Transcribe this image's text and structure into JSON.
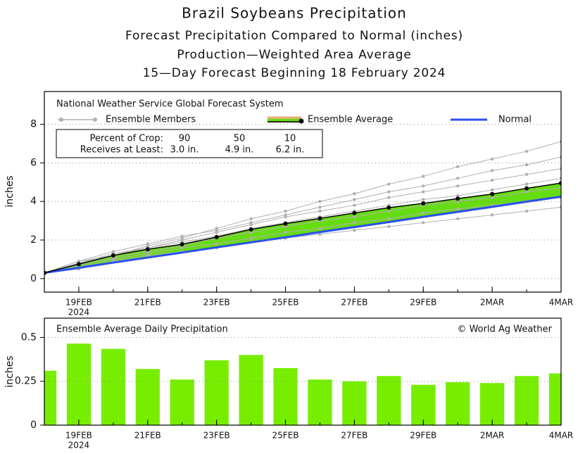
{
  "chart_data": [
    {
      "type": "line",
      "title": "Brazil Soybeans Precipitation",
      "subtitle": [
        "Forecast Precipitation Compared to Normal (inches)",
        "Production—Weighted Area Average",
        "15—Day Forecast Beginning 18 February 2024"
      ],
      "source": "National Weather Service Global Forecast System",
      "ylabel": "inches",
      "x": [
        "2024-02-18",
        "2024-02-19",
        "2024-02-20",
        "2024-02-21",
        "2024-02-22",
        "2024-02-23",
        "2024-02-24",
        "2024-02-25",
        "2024-02-26",
        "2024-02-27",
        "2024-02-28",
        "2024-02-29",
        "2024-03-01",
        "2024-03-02",
        "2024-03-03",
        "2024-03-04"
      ],
      "xlim": [
        "2024-02-18",
        "2024-03-04"
      ],
      "xticks": [
        {
          "value": "2024-02-19",
          "label": "19FEB"
        },
        {
          "value": "2024-02-21",
          "label": "21FEB"
        },
        {
          "value": "2024-02-23",
          "label": "23FEB"
        },
        {
          "value": "2024-02-25",
          "label": "25FEB"
        },
        {
          "value": "2024-02-27",
          "label": "27FEB"
        },
        {
          "value": "2024-02-29",
          "label": "29FEB"
        },
        {
          "value": "2024-03-02",
          "label": "2MAR"
        },
        {
          "value": "2024-03-04",
          "label": "4MAR"
        }
      ],
      "x_year_label": "2024",
      "ylim": [
        -0.7,
        9.7
      ],
      "yticks": [
        0,
        2,
        4,
        6,
        8
      ],
      "grid": true,
      "fill_color": "#66dd11",
      "legend_outline_color": "#e0b070",
      "series": [
        {
          "name": "Ensemble Members",
          "color": "#b0b0b0",
          "members": [
            [
              0.3,
              0.8,
              1.2,
              1.7,
              2.1,
              2.6,
              3.1,
              3.5,
              4.0,
              4.4,
              4.9,
              5.3,
              5.8,
              6.2,
              6.6,
              7.1
            ],
            [
              0.3,
              0.9,
              1.4,
              1.8,
              2.2,
              2.5,
              2.9,
              3.3,
              3.7,
              4.1,
              4.5,
              4.8,
              5.2,
              5.6,
              5.9,
              6.3
            ],
            [
              0.3,
              0.8,
              1.3,
              1.6,
              2.0,
              2.4,
              2.8,
              3.2,
              3.5,
              3.8,
              4.2,
              4.5,
              4.8,
              5.1,
              5.4,
              5.7
            ],
            [
              0.3,
              0.9,
              1.2,
              1.6,
              1.9,
              2.2,
              2.6,
              2.9,
              3.2,
              3.5,
              3.8,
              4.1,
              4.3,
              4.6,
              4.9,
              5.2
            ],
            [
              0.3,
              0.7,
              1.1,
              1.4,
              1.7,
              2.1,
              2.4,
              2.7,
              3.0,
              3.2,
              3.5,
              3.8,
              4.0,
              4.2,
              4.5,
              4.7
            ],
            [
              0.3,
              0.6,
              1.0,
              1.3,
              1.6,
              1.8,
              2.1,
              2.4,
              2.6,
              2.9,
              3.1,
              3.4,
              3.6,
              3.8,
              4.0,
              4.2
            ],
            [
              0.3,
              0.5,
              0.9,
              1.2,
              1.4,
              1.6,
              1.9,
              2.1,
              2.3,
              2.5,
              2.7,
              2.9,
              3.1,
              3.3,
              3.5,
              3.7
            ]
          ]
        },
        {
          "name": "Ensemble Average",
          "color": "#000000",
          "values": [
            0.3,
            0.75,
            1.2,
            1.52,
            1.78,
            2.15,
            2.55,
            2.85,
            3.12,
            3.4,
            3.68,
            3.9,
            4.15,
            4.38,
            4.68,
            4.95
          ]
        },
        {
          "name": "Normal",
          "color": "#2b4ff0",
          "values": [
            0.3,
            0.56,
            0.83,
            1.09,
            1.35,
            1.62,
            1.88,
            2.14,
            2.41,
            2.67,
            2.93,
            3.2,
            3.46,
            3.72,
            3.99,
            4.25
          ]
        }
      ],
      "crop_table": {
        "row_labels": [
          "Percent of Crop:",
          "Receives at Least:"
        ],
        "percents": [
          90,
          50,
          10
        ],
        "amounts": [
          "3.0 in.",
          "4.9 in.",
          "6.2 in."
        ]
      }
    },
    {
      "type": "bar",
      "title": "Ensemble Average Daily Precipitation",
      "annotation": "© World Ag Weather",
      "ylabel": "inches",
      "x": [
        "2024-02-18",
        "2024-02-19",
        "2024-02-20",
        "2024-02-21",
        "2024-02-22",
        "2024-02-23",
        "2024-02-24",
        "2024-02-25",
        "2024-02-26",
        "2024-02-27",
        "2024-02-28",
        "2024-02-29",
        "2024-03-01",
        "2024-03-02",
        "2024-03-03",
        "2024-03-04"
      ],
      "values": [
        0.31,
        0.465,
        0.435,
        0.32,
        0.26,
        0.37,
        0.4,
        0.325,
        0.26,
        0.25,
        0.28,
        0.23,
        0.245,
        0.24,
        0.28,
        0.295
      ],
      "color": "#77ee00",
      "xlim": [
        "2024-02-18",
        "2024-03-04"
      ],
      "xticks": [
        {
          "value": "2024-02-19",
          "label": "19FEB"
        },
        {
          "value": "2024-02-21",
          "label": "21FEB"
        },
        {
          "value": "2024-02-23",
          "label": "23FEB"
        },
        {
          "value": "2024-02-25",
          "label": "25FEB"
        },
        {
          "value": "2024-02-27",
          "label": "27FEB"
        },
        {
          "value": "2024-02-29",
          "label": "29FEB"
        },
        {
          "value": "2024-03-02",
          "label": "2MAR"
        },
        {
          "value": "2024-03-04",
          "label": "4MAR"
        }
      ],
      "x_year_label": "2024",
      "ylim": [
        0,
        0.61
      ],
      "yticks": [
        0,
        0.25,
        0.5
      ],
      "grid": true
    }
  ]
}
